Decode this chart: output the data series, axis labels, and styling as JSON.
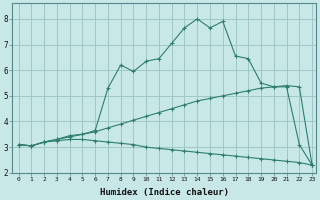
{
  "xlabel": "Humidex (Indice chaleur)",
  "bg_color": "#c8e8e8",
  "grid_color": "#a0c8c8",
  "line_color": "#2e7d6e",
  "xlim": [
    -0.5,
    23.3
  ],
  "ylim": [
    2.0,
    8.6
  ],
  "xticks": [
    0,
    1,
    2,
    3,
    4,
    5,
    6,
    7,
    8,
    9,
    10,
    11,
    12,
    13,
    14,
    15,
    16,
    17,
    18,
    19,
    20,
    21,
    22,
    23
  ],
  "yticks": [
    2,
    3,
    4,
    5,
    6,
    7,
    8
  ],
  "line1_x": [
    0,
    1,
    2,
    3,
    4,
    5,
    6,
    7,
    8,
    9,
    10,
    11,
    12,
    13,
    14,
    15,
    16,
    17,
    18,
    19,
    20,
    21,
    22,
    23
  ],
  "line1_y": [
    3.1,
    3.05,
    3.2,
    3.25,
    3.3,
    3.3,
    3.25,
    3.2,
    3.15,
    3.1,
    3.0,
    2.95,
    2.9,
    2.85,
    2.8,
    2.75,
    2.7,
    2.65,
    2.6,
    2.55,
    2.5,
    2.45,
    2.4,
    2.3
  ],
  "line2_x": [
    0,
    1,
    2,
    3,
    4,
    5,
    6,
    7,
    8,
    9,
    10,
    11,
    12,
    13,
    14,
    15,
    16,
    17,
    18,
    19,
    20,
    21,
    22,
    23
  ],
  "line2_y": [
    3.1,
    3.05,
    3.2,
    3.3,
    3.45,
    3.5,
    3.6,
    3.75,
    3.9,
    4.05,
    4.2,
    4.35,
    4.5,
    4.65,
    4.8,
    4.9,
    5.0,
    5.1,
    5.2,
    5.3,
    5.35,
    5.4,
    5.35,
    2.3
  ],
  "line3_x": [
    0,
    1,
    2,
    3,
    4,
    5,
    6,
    7,
    8,
    9,
    10,
    11,
    12,
    13,
    14,
    15,
    16,
    17,
    18,
    19,
    20,
    21,
    22,
    23
  ],
  "line3_y": [
    3.1,
    3.05,
    3.2,
    3.3,
    3.4,
    3.5,
    3.65,
    5.3,
    6.2,
    5.95,
    6.35,
    6.45,
    7.05,
    7.65,
    8.0,
    7.65,
    7.9,
    6.55,
    6.45,
    5.5,
    5.35,
    5.35,
    3.1,
    2.3
  ]
}
